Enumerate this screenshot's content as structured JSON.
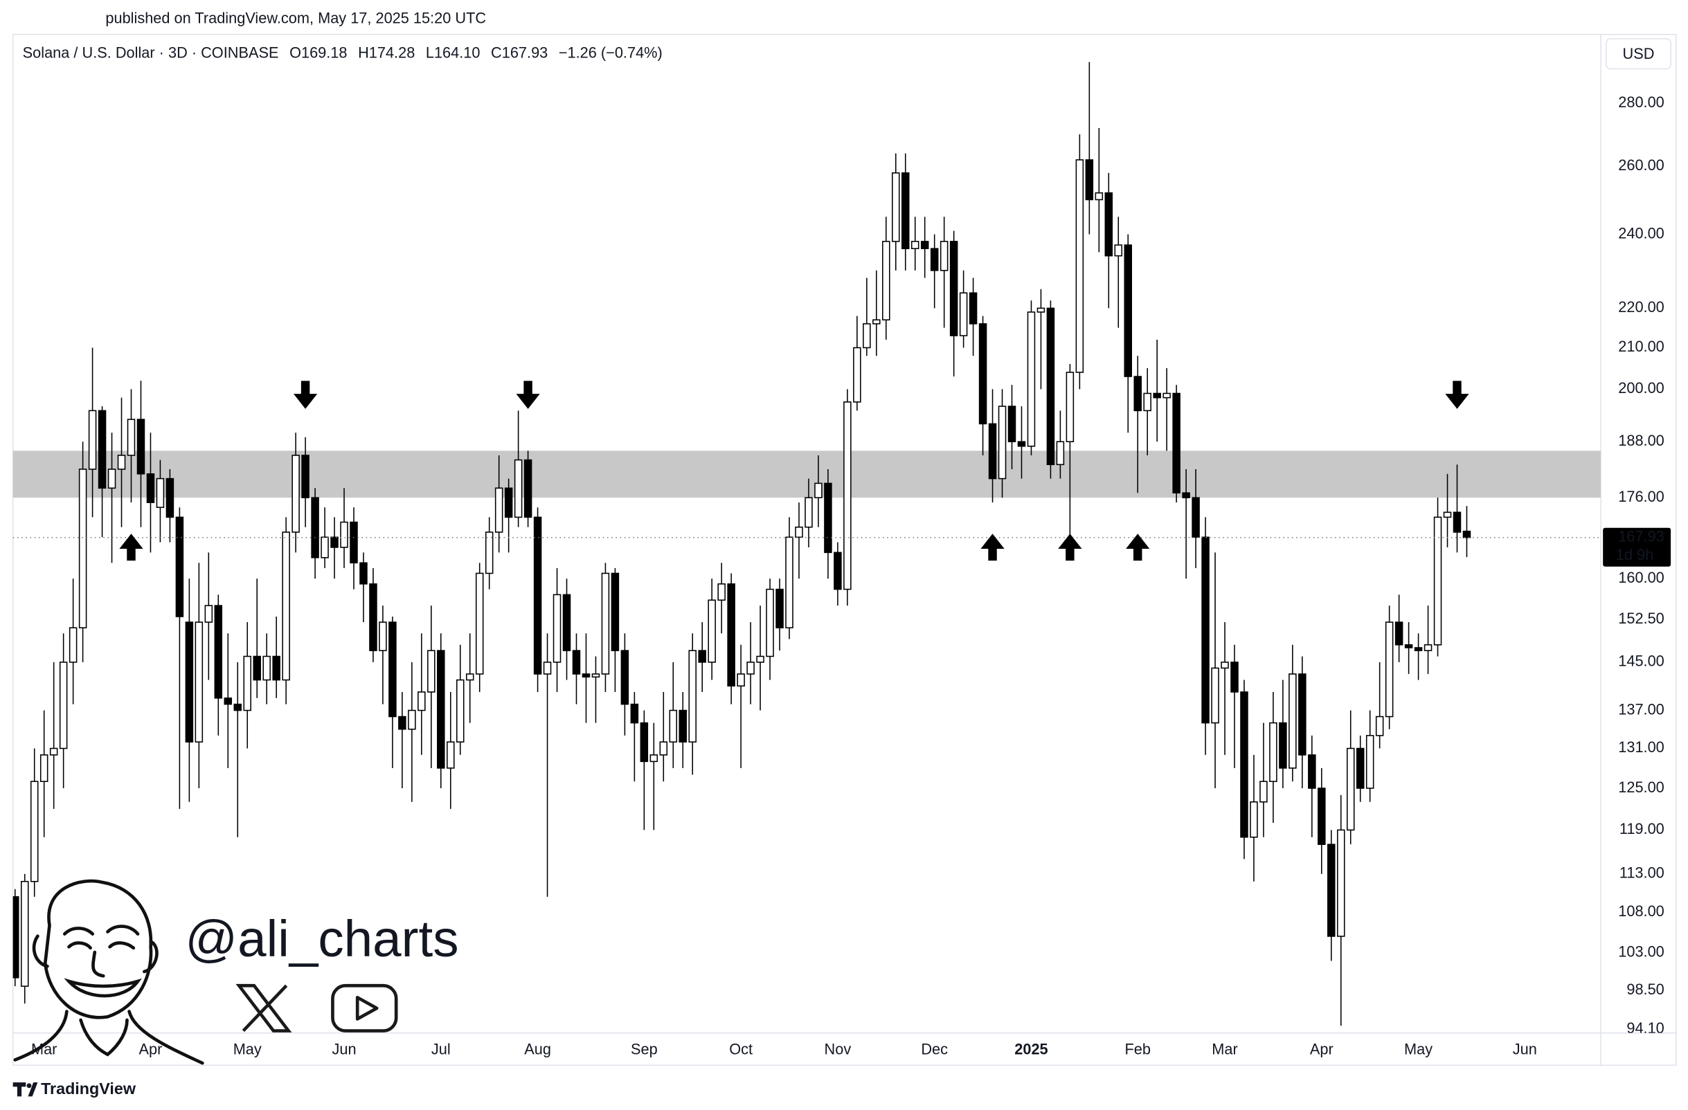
{
  "header": {
    "published": "published on TradingView.com, May 17, 2025 15:20 UTC",
    "brand": "TradingView"
  },
  "watermark": {
    "handle": "@ali_charts"
  },
  "chart_data": {
    "type": "candlestick",
    "symbol": "Solana / U.S. Dollar · 3D · COINBASE",
    "legend": {
      "open": "O169.18",
      "high": "H174.28",
      "low": "L164.10",
      "close": "C167.93",
      "change": "−1.26 (−0.74%)"
    },
    "currency": "USD",
    "log_scale": true,
    "grid": false,
    "up_color": "#ffffff",
    "down_color": "#000000",
    "wick_color": "#000000",
    "categories": [
      null,
      null,
      null,
      "Mar",
      null,
      null,
      null,
      null,
      null,
      null,
      null,
      null,
      null,
      null,
      "Apr",
      null,
      null,
      null,
      null,
      null,
      null,
      null,
      null,
      null,
      "May",
      null,
      null,
      null,
      null,
      null,
      null,
      null,
      null,
      null,
      "Jun",
      null,
      null,
      null,
      null,
      null,
      null,
      null,
      null,
      null,
      "Jul",
      null,
      null,
      null,
      null,
      null,
      null,
      null,
      null,
      null,
      "Aug",
      null,
      null,
      null,
      null,
      null,
      null,
      null,
      null,
      null,
      null,
      "Sep",
      null,
      null,
      null,
      null,
      null,
      null,
      null,
      null,
      null,
      "Oct",
      null,
      null,
      null,
      null,
      null,
      null,
      null,
      null,
      null,
      "Nov",
      null,
      null,
      null,
      null,
      null,
      null,
      null,
      null,
      null,
      "Dec",
      null,
      null,
      null,
      null,
      null,
      null,
      null,
      null,
      null,
      "2025",
      null,
      null,
      null,
      null,
      null,
      null,
      null,
      null,
      null,
      null,
      "Feb",
      null,
      null,
      null,
      null,
      null,
      null,
      null,
      null,
      "Mar",
      null,
      null,
      null,
      null,
      null,
      null,
      null,
      null,
      null,
      "Apr",
      null,
      null,
      null,
      null,
      null,
      null,
      null,
      null,
      null,
      "May",
      null,
      null,
      null,
      null,
      null,
      null,
      null,
      null,
      null,
      null,
      "Jun"
    ],
    "open": [
      110,
      99,
      112,
      126,
      130,
      131,
      145,
      151,
      182,
      195,
      178,
      182,
      185,
      193,
      181,
      174,
      180,
      172,
      152,
      132,
      152,
      155,
      139,
      138,
      137,
      146,
      142,
      146,
      142,
      169,
      185,
      176,
      164,
      168,
      166,
      171,
      163,
      159,
      147,
      152,
      136,
      134,
      137,
      140,
      147,
      128,
      132,
      142,
      143,
      161,
      169,
      178,
      172,
      184,
      172,
      143,
      145,
      157,
      147,
      143,
      142.5,
      143,
      161,
      147,
      138,
      135,
      129,
      130,
      132,
      137,
      132,
      147,
      145,
      156,
      159,
      141,
      143,
      145,
      146,
      158,
      151,
      168,
      170,
      176,
      179,
      165,
      158,
      197,
      210,
      216,
      217,
      238,
      258,
      236,
      238,
      236,
      230,
      238,
      213,
      224,
      216,
      192,
      180,
      196,
      188,
      187,
      219,
      220,
      183,
      188,
      204,
      262,
      250,
      252,
      234,
      237,
      203,
      195,
      199,
      198,
      199,
      177,
      176,
      168,
      135,
      144,
      145,
      140,
      118,
      123,
      126,
      135,
      128,
      143,
      130,
      125,
      117,
      105,
      119,
      131,
      125,
      133,
      136,
      152,
      148,
      147.5,
      147,
      148,
      172,
      173,
      169.18,
      null,
      null,
      null,
      null,
      null,
      null
    ],
    "high": [
      111,
      113,
      131,
      137,
      145,
      150,
      160,
      188,
      210,
      196,
      190,
      198,
      200,
      202,
      190,
      184,
      182,
      174,
      160,
      163,
      165,
      157,
      150,
      145,
      152,
      160,
      150,
      153,
      172,
      190,
      189,
      178,
      174,
      172,
      178,
      174,
      165,
      162,
      155,
      153,
      140,
      145,
      150,
      155,
      150,
      140,
      148,
      150,
      163,
      172,
      185,
      180,
      195,
      186,
      174,
      150,
      162,
      160,
      150,
      150,
      146,
      163,
      162,
      150,
      140,
      137,
      135,
      140,
      145,
      140,
      150,
      152,
      160,
      163,
      161,
      148,
      152,
      155,
      160,
      160,
      172,
      175,
      180,
      185,
      182,
      167,
      200,
      218,
      228,
      230,
      245,
      264,
      264,
      245,
      245,
      240,
      245,
      241,
      230,
      228,
      218,
      200,
      200,
      201,
      196,
      222,
      225,
      222,
      195,
      206,
      270,
      294,
      272,
      258,
      245,
      240,
      208,
      205,
      212,
      205,
      201,
      182,
      182,
      172,
      165,
      152,
      148,
      142,
      130,
      135,
      140,
      142,
      148,
      146,
      133,
      128,
      119,
      124,
      137,
      133,
      137,
      145,
      155,
      157,
      152,
      150,
      155,
      176,
      181,
      183,
      174.28,
      null,
      null,
      null,
      null,
      null,
      null
    ],
    "low": [
      99,
      97,
      110,
      118,
      122,
      125,
      138,
      145,
      172,
      168,
      163,
      170,
      175,
      170,
      165,
      167,
      167,
      122,
      123,
      125,
      142,
      133,
      128,
      118,
      131,
      139,
      138,
      139,
      138,
      165,
      170,
      160,
      162,
      160,
      162,
      158,
      152,
      145,
      138,
      128,
      125,
      123,
      130,
      128,
      125,
      122,
      130,
      135,
      140,
      158,
      165,
      165,
      170,
      170,
      140,
      110,
      140,
      142,
      138,
      135,
      135,
      140,
      140,
      133,
      126,
      119,
      119,
      126,
      128,
      128,
      127,
      140,
      142,
      150,
      138,
      128,
      138,
      137,
      142,
      147,
      149,
      160,
      166,
      170,
      160,
      155,
      155,
      195,
      208,
      208,
      212,
      230,
      230,
      230,
      228,
      220,
      215,
      203,
      210,
      208,
      185,
      175,
      176,
      182,
      180,
      185,
      200,
      180,
      180,
      168,
      200,
      240,
      235,
      220,
      215,
      190,
      177,
      185,
      188,
      186,
      175,
      160,
      162,
      130,
      125,
      130,
      128,
      115,
      112,
      118,
      120,
      125,
      126,
      125,
      118,
      113,
      102,
      94.5,
      117,
      123,
      123,
      131,
      134,
      145,
      143,
      142,
      143,
      146,
      166,
      165,
      164.1,
      null,
      null,
      null,
      null,
      null,
      null
    ],
    "close": [
      100,
      112,
      126,
      130,
      131,
      145,
      151,
      182,
      195,
      178,
      182,
      185,
      193,
      181,
      175,
      180,
      172,
      153,
      132,
      152,
      155,
      139,
      138,
      137,
      146,
      142,
      146,
      142,
      169,
      185,
      176,
      164,
      168,
      166,
      171,
      163,
      159,
      147,
      152,
      136,
      134,
      137,
      140,
      147,
      128,
      132,
      142,
      143,
      161,
      169,
      178,
      172,
      184,
      172,
      143,
      145,
      157,
      147,
      143,
      142.5,
      143,
      161,
      147,
      138,
      135,
      129,
      130,
      132,
      137,
      132,
      147,
      145,
      156,
      159,
      141,
      143,
      145,
      146,
      158,
      151,
      168,
      170,
      176,
      179,
      165,
      158,
      197,
      210,
      216,
      217,
      238,
      258,
      236,
      238,
      236,
      230,
      238,
      213,
      224,
      216,
      192,
      180,
      196,
      188,
      187,
      219,
      220,
      183,
      188,
      204,
      262,
      250,
      252,
      234,
      237,
      203,
      195,
      199,
      198,
      199,
      177,
      176,
      168,
      135,
      144,
      145,
      140,
      118,
      123,
      126,
      135,
      128,
      143,
      130,
      125,
      117,
      105,
      119,
      131,
      125,
      133,
      136,
      152,
      148,
      147.5,
      147,
      148,
      172,
      173,
      169,
      167.93,
      null,
      null,
      null,
      null,
      null,
      null
    ],
    "ylim": [
      93.7,
      303.7
    ],
    "yticks": [
      {
        "value": 94.1,
        "label": "94.10"
      },
      {
        "value": 98.5,
        "label": "98.50"
      },
      {
        "value": 103,
        "label": "103.00"
      },
      {
        "value": 108,
        "label": "108.00"
      },
      {
        "value": 113,
        "label": "113.00"
      },
      {
        "value": 119,
        "label": "119.00"
      },
      {
        "value": 125,
        "label": "125.00"
      },
      {
        "value": 131,
        "label": "131.00"
      },
      {
        "value": 137,
        "label": "137.00"
      },
      {
        "value": 145,
        "label": "145.00"
      },
      {
        "value": 152.5,
        "label": "152.50"
      },
      {
        "value": 160,
        "label": "160.00"
      },
      {
        "value": 176,
        "label": "176.00"
      },
      {
        "value": 188,
        "label": "188.00"
      },
      {
        "value": 200,
        "label": "200.00"
      },
      {
        "value": 210,
        "label": "210.00"
      },
      {
        "value": 220,
        "label": "220.00"
      },
      {
        "value": 240,
        "label": "240.00"
      },
      {
        "value": 260,
        "label": "260.00"
      },
      {
        "value": 280,
        "label": "280.00"
      }
    ],
    "last_price": {
      "value": 167.93,
      "label": "167.93",
      "countdown": "1d 9h"
    },
    "zone": {
      "low": 176,
      "high": 186,
      "color": "#c8c8c8"
    }
  }
}
